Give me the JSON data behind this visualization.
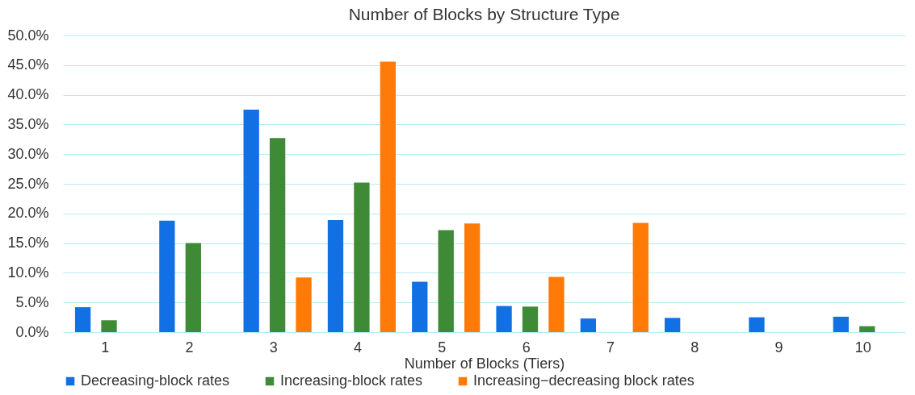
{
  "chart_data": {
    "type": "bar",
    "title": "Number of Blocks by Structure Type",
    "xlabel": "Number of Blocks (Tiers)",
    "categories": [
      "1",
      "2",
      "3",
      "4",
      "5",
      "6",
      "7",
      "8",
      "9",
      "10"
    ],
    "series": [
      {
        "name": "Decreasing-block rates",
        "color": "#1170e4",
        "values": [
          4.2,
          18.8,
          37.5,
          18.9,
          8.5,
          4.4,
          2.3,
          2.4,
          2.5,
          2.6
        ]
      },
      {
        "name": "Increasing-block rates",
        "color": "#3f8a36",
        "values": [
          2.0,
          15.0,
          32.7,
          25.2,
          17.2,
          4.3,
          0,
          0,
          0,
          1.0
        ]
      },
      {
        "name": "Increasing−decreasing block rates",
        "color": "#ff7a06",
        "values": [
          0,
          0,
          9.2,
          45.6,
          18.3,
          9.3,
          18.4,
          0,
          0,
          0
        ]
      }
    ],
    "ylim": [
      0,
      50
    ],
    "yticks": [
      {
        "value": 0,
        "label": "0.0%"
      },
      {
        "value": 5,
        "label": "5.0%"
      },
      {
        "value": 10,
        "label": "10.0%"
      },
      {
        "value": 15,
        "label": "15.0%"
      },
      {
        "value": 20,
        "label": "20.0%"
      },
      {
        "value": 25,
        "label": "25.0%"
      },
      {
        "value": 30,
        "label": "30.0%"
      },
      {
        "value": 35,
        "label": "35.0%"
      },
      {
        "value": 40,
        "label": "40.0%"
      },
      {
        "value": 45,
        "label": "45.0%"
      },
      {
        "value": 50,
        "label": "50.0%"
      }
    ],
    "grid": "y",
    "legend": "bottom"
  }
}
